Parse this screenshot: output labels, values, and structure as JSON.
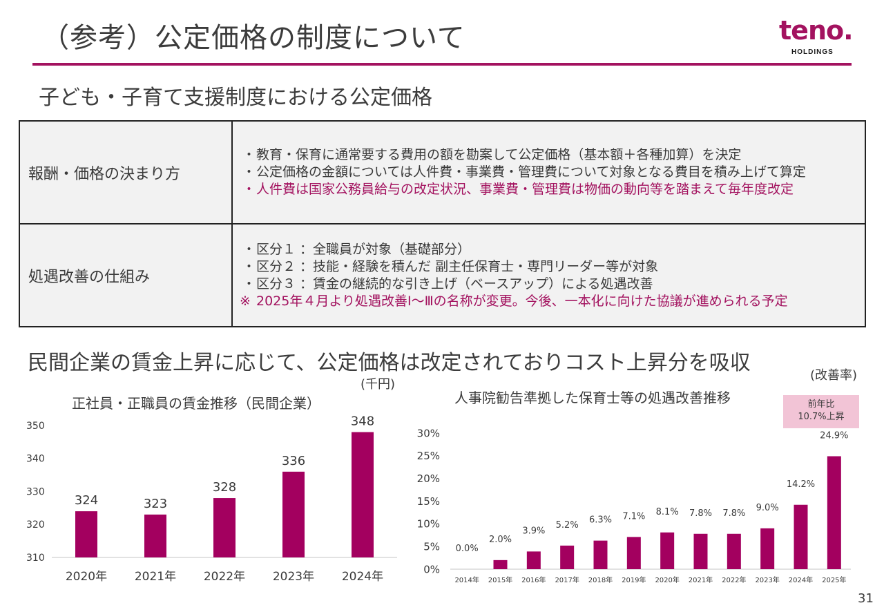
{
  "header": {
    "title": "（参考）公定価格の制度について",
    "logo_word": "teno.",
    "logo_sub": "HOLDINGS"
  },
  "section1": {
    "title": "子ども・子育て支援制度における公定価格",
    "rows": [
      {
        "label": "報酬・価格の決まり方",
        "lines": [
          {
            "text": "教育・保育に通常要する費用の額を勘案して公定価格（基本額＋各種加算）を決定",
            "style": "bullet"
          },
          {
            "text": "公定価格の金額については人件費・事業費・管理費について対象となる費目を積み上げて算定",
            "style": "bullet"
          },
          {
            "text": "人件費は国家公務員給与の改定状況、事業費・管理費は物価の動向等を踏まえて毎年度改定",
            "style": "bullet-accent"
          }
        ]
      },
      {
        "label": "処遇改善の仕組み",
        "lines": [
          {
            "text": "区分１ ：全職員が対象（基礎部分）",
            "style": "bullet"
          },
          {
            "text": "区分２ ：技能・経験を積んだ 副主任保育士・専門リーダー等が対象",
            "style": "bullet"
          },
          {
            "text": "区分３ ：賃金の継続的な引き上げ（ベースアップ）による処遇改善",
            "style": "bullet"
          },
          {
            "text": "2025年４月より処遇改善Ⅰ～Ⅲの名称が変更。今後、一本化に向けた協議が進められる予定",
            "style": "note-accent",
            "mark": "※"
          }
        ]
      }
    ]
  },
  "section2": {
    "title": "民間企業の賃金上昇に応じて、公定価格は改定されておりコスト上昇分を吸収"
  },
  "callout": {
    "line1": "前年比",
    "line2": "10.7%上昇"
  },
  "page_number": "31",
  "colors": {
    "accent": "#a3125f",
    "bar": "#a3005f",
    "callout_bg": "#f2c4d6",
    "table_bg": "#f2f2f2"
  },
  "chart_data": [
    {
      "type": "bar",
      "title": "正社員・正職員の賃金推移（民間企業）",
      "unit_label": "(千円)",
      "xlabel": "",
      "ylabel": "",
      "categories": [
        "2020年",
        "2021年",
        "2022年",
        "2023年",
        "2024年"
      ],
      "values": [
        324,
        323,
        328,
        336,
        348
      ],
      "data_labels": [
        "324",
        "323",
        "328",
        "336",
        "348"
      ],
      "ylim": [
        310,
        350
      ],
      "yticks": [
        310,
        320,
        330,
        340,
        350
      ],
      "ytick_labels": [
        "310",
        "320",
        "330",
        "340",
        "350"
      ],
      "grid": false,
      "legend": "none"
    },
    {
      "type": "bar",
      "title": "人事院勧告準拠した保育士等の処遇改善推移",
      "unit_label": "(改善率)",
      "xlabel": "",
      "ylabel": "",
      "categories": [
        "2014年",
        "2015年",
        "2016年",
        "2017年",
        "2018年",
        "2019年",
        "2020年",
        "2021年",
        "2022年",
        "2023年",
        "2024年",
        "2025年"
      ],
      "values": [
        0.0,
        2.0,
        3.9,
        5.2,
        6.3,
        7.1,
        8.1,
        7.8,
        7.8,
        9.0,
        14.2,
        24.9
      ],
      "data_labels": [
        "0.0%",
        "2.0%",
        "3.9%",
        "5.2%",
        "6.3%",
        "7.1%",
        "8.1%",
        "7.8%",
        "7.8%",
        "9.0%",
        "14.2%",
        "24.9%"
      ],
      "ylim": [
        0,
        30
      ],
      "yticks": [
        0,
        5,
        10,
        15,
        20,
        25,
        30
      ],
      "ytick_labels": [
        "0%",
        "5%",
        "10%",
        "15%",
        "20%",
        "25%",
        "30%"
      ],
      "grid": false,
      "legend": "none",
      "annotation": "前年比 10.7%上昇"
    }
  ]
}
